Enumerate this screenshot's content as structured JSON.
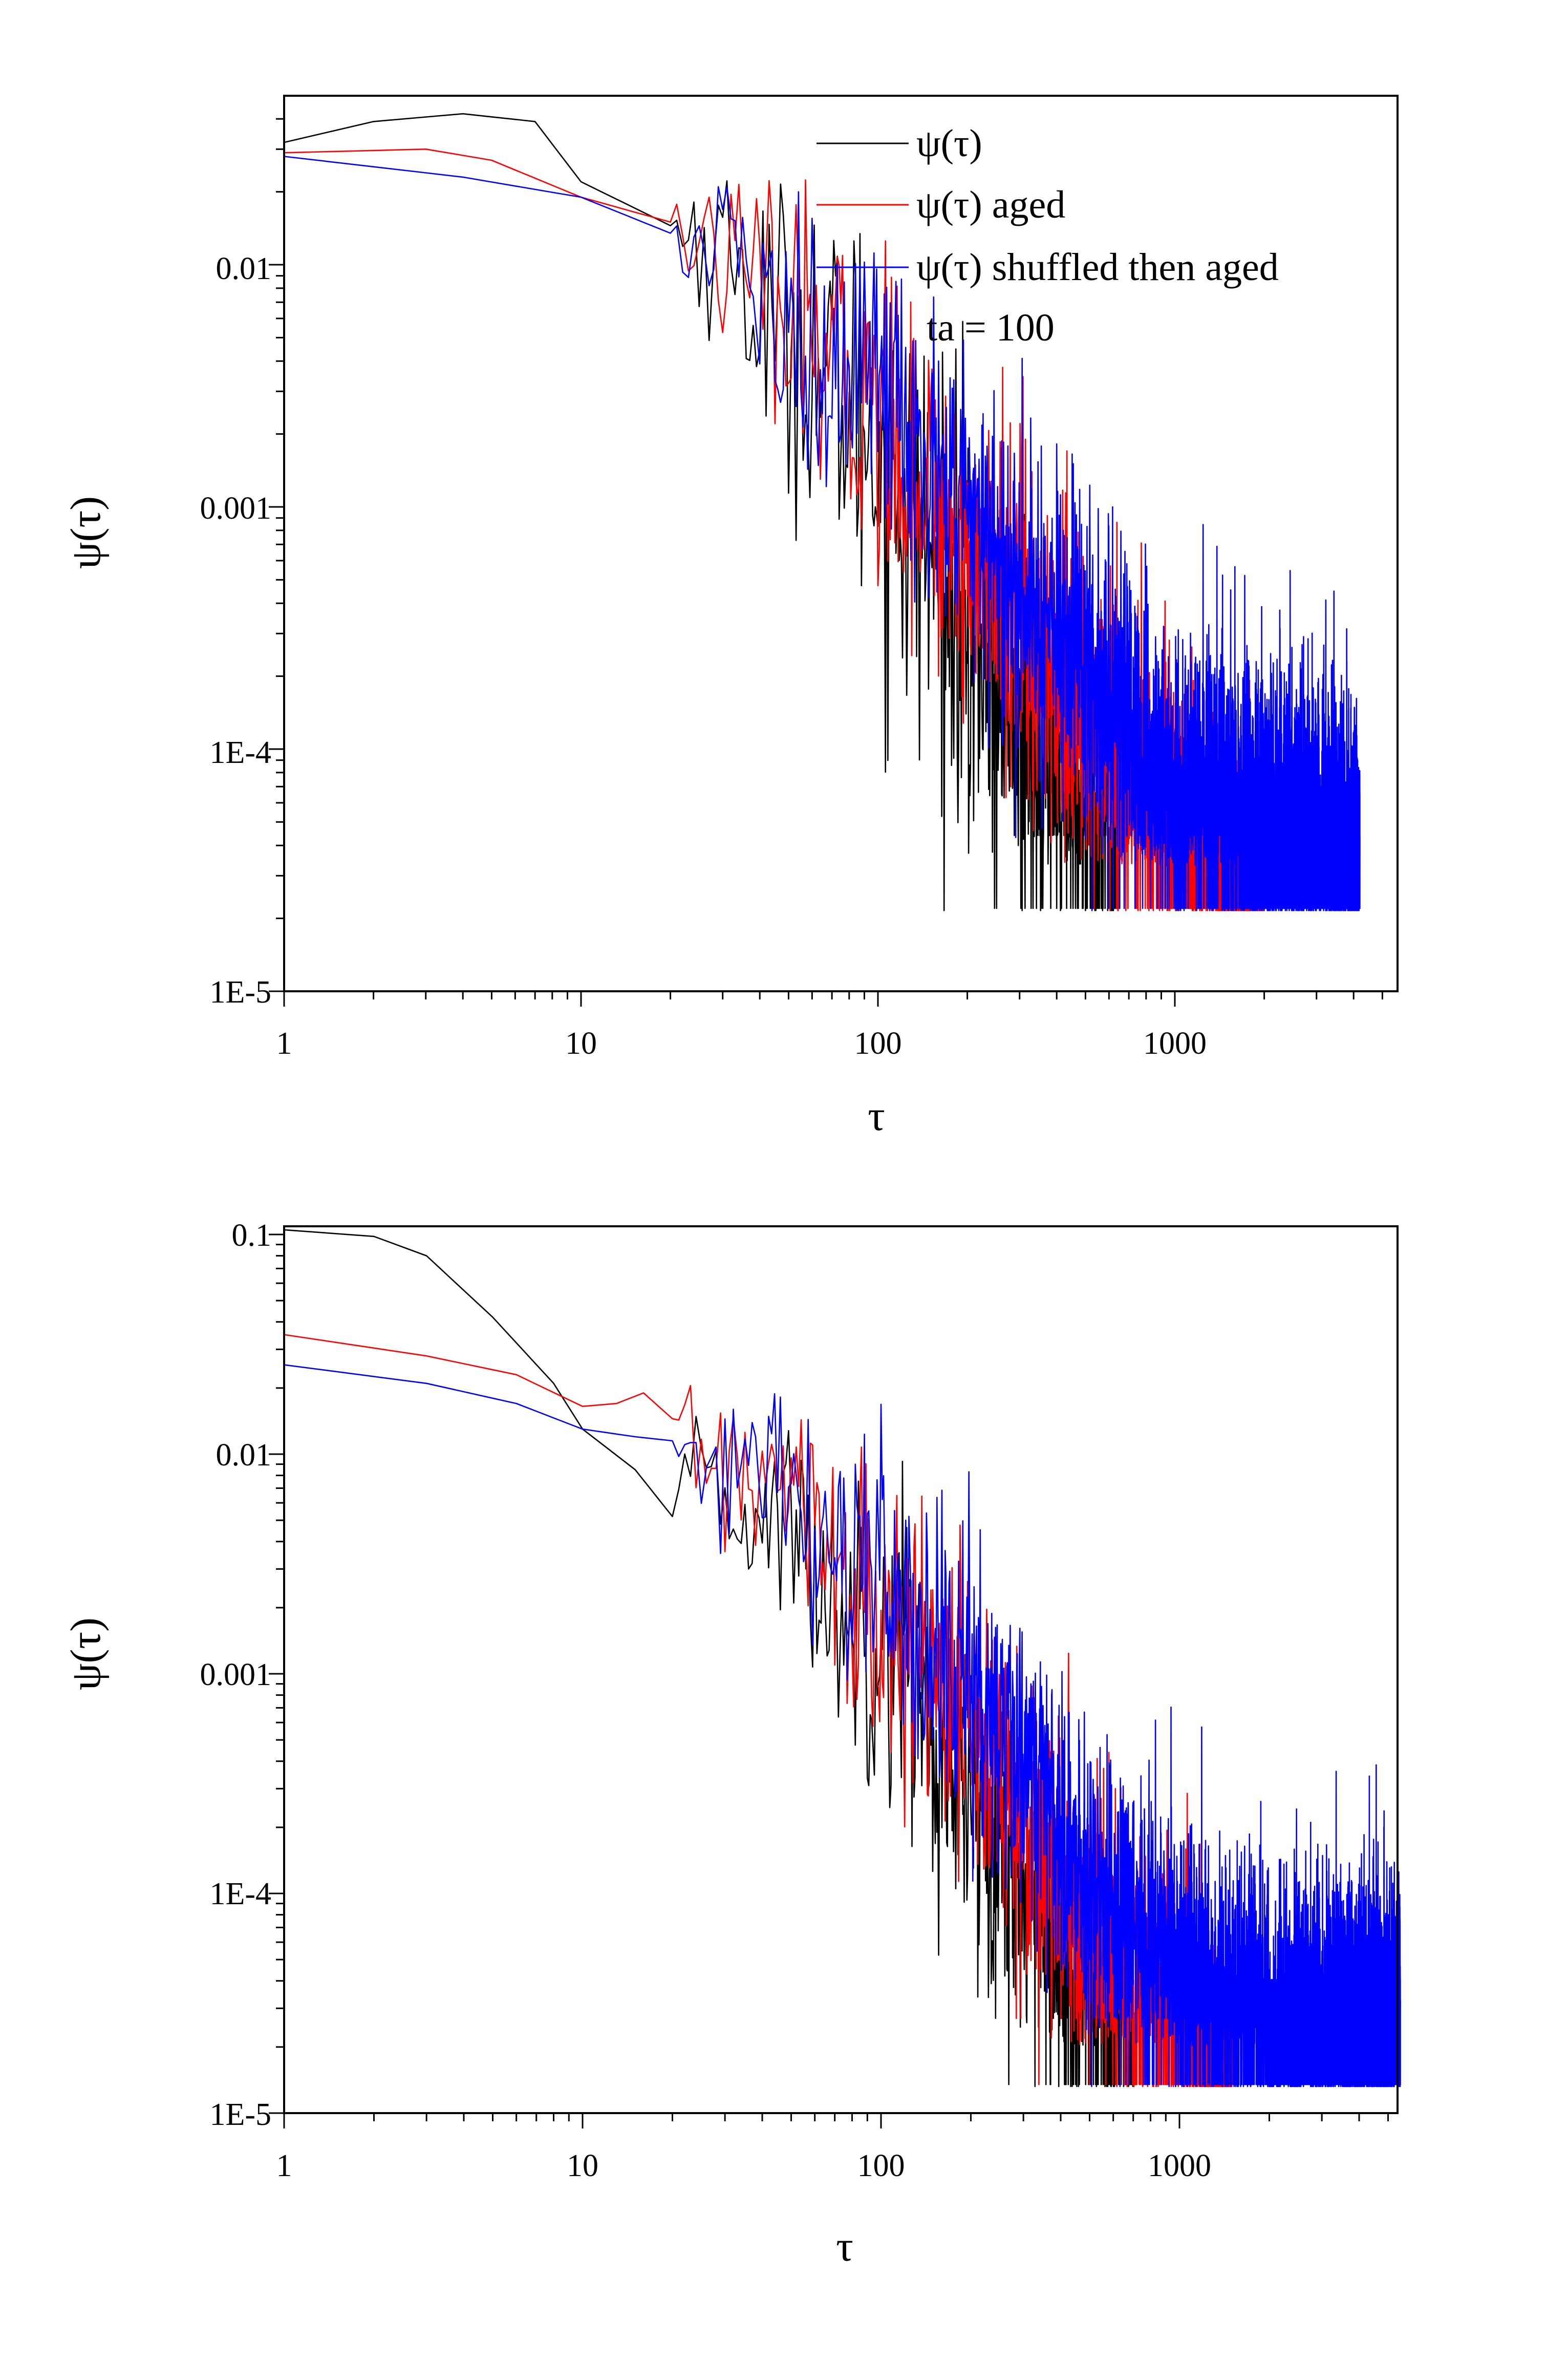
{
  "chart_data": [
    {
      "type": "line",
      "scale": "log-log",
      "xlabel": "τ",
      "ylabel": "ψ(τ)",
      "xlim": [
        1,
        5000
      ],
      "ylim": [
        1e-05,
        0.05
      ],
      "x_ticks": [
        1,
        10,
        100,
        1000
      ],
      "x_tick_labels": [
        "1",
        "10",
        "100",
        "1000"
      ],
      "y_ticks": [
        1e-05,
        0.0001,
        0.001,
        0.01
      ],
      "y_tick_labels": [
        "1E-5",
        "1E-4",
        "0.001",
        "0.01"
      ],
      "legend": {
        "position": "top-right",
        "entries": [
          "ψ(τ)",
          "ψ(τ) aged",
          "ψ(τ) shuffled then aged"
        ]
      },
      "annotation": "ta = 100",
      "noise_floor": 2.2e-05,
      "series": [
        {
          "name": "ψ(τ)",
          "color": "#000000",
          "anchors": [
            [
              1,
              0.032
            ],
            [
              2,
              0.039
            ],
            [
              4,
              0.042
            ],
            [
              7,
              0.039
            ],
            [
              10,
              0.022
            ],
            [
              20,
              0.0145
            ],
            [
              30,
              0.012
            ],
            [
              40,
              0.0065
            ],
            [
              60,
              0.0042
            ],
            [
              100,
              0.0018
            ],
            [
              150,
              0.00065
            ],
            [
              200,
              0.00028
            ],
            [
              300,
              0.0001
            ],
            [
              400,
              5e-05
            ]
          ],
          "noise": 0.45,
          "x_end": 650
        },
        {
          "name": "ψ(τ) aged",
          "color": "#ff0000",
          "anchors": [
            [
              1,
              0.029
            ],
            [
              3,
              0.03
            ],
            [
              5,
              0.027
            ],
            [
              10,
              0.019
            ],
            [
              20,
              0.015
            ],
            [
              30,
              0.011
            ],
            [
              50,
              0.0055
            ],
            [
              100,
              0.0025
            ],
            [
              150,
              0.0012
            ],
            [
              200,
              0.00065
            ],
            [
              300,
              0.00035
            ],
            [
              500,
              0.00012
            ],
            [
              800,
              5e-05
            ]
          ],
          "noise": 0.35,
          "x_end": 2000
        },
        {
          "name": "ψ(τ) shuffled then aged",
          "color": "#0000ff",
          "anchors": [
            [
              1,
              0.028
            ],
            [
              4,
              0.023
            ],
            [
              10,
              0.019
            ],
            [
              20,
              0.0135
            ],
            [
              30,
              0.0105
            ],
            [
              50,
              0.0058
            ],
            [
              100,
              0.0029
            ],
            [
              200,
              0.0009
            ],
            [
              300,
              0.0005
            ],
            [
              500,
              0.00022
            ],
            [
              1000,
              6e-05
            ],
            [
              2000,
              4e-05
            ]
          ],
          "noise": 0.35,
          "x_end": 4200
        }
      ]
    },
    {
      "type": "line",
      "scale": "log-log",
      "xlabel": "τ",
      "ylabel": "ψ(τ)",
      "xlim": [
        1,
        6000
      ],
      "ylim": [
        1e-05,
        0.12
      ],
      "x_ticks": [
        1,
        10,
        100,
        1000
      ],
      "x_tick_labels": [
        "1",
        "10",
        "100",
        "1000"
      ],
      "y_ticks": [
        1e-05,
        0.0001,
        0.001,
        0.01,
        0.1
      ],
      "y_tick_labels": [
        "1E-5",
        "1E-4",
        "0.001",
        "0.01",
        "0.1"
      ],
      "noise_floor": 1.35e-05,
      "series": [
        {
          "name": "ψ(τ)",
          "color": "#000000",
          "anchors": [
            [
              1,
              0.105
            ],
            [
              2,
              0.098
            ],
            [
              3,
              0.08
            ],
            [
              5,
              0.042
            ],
            [
              8,
              0.021
            ],
            [
              10,
              0.013
            ],
            [
              15,
              0.0085
            ],
            [
              20,
              0.0052
            ],
            [
              25,
              0.0078
            ],
            [
              28,
              0.0092
            ],
            [
              30,
              0.0055
            ],
            [
              40,
              0.0052
            ],
            [
              55,
              0.0048
            ],
            [
              60,
              0.0026
            ],
            [
              70,
              0.0018
            ],
            [
              80,
              0.0022
            ],
            [
              100,
              0.0013
            ],
            [
              120,
              0.0016
            ],
            [
              160,
              0.00032
            ],
            [
              200,
              0.00025
            ],
            [
              250,
              0.00018
            ],
            [
              300,
              0.00012
            ],
            [
              400,
              4e-05
            ],
            [
              500,
              2.5e-05
            ]
          ],
          "noise": 0.35,
          "x_end": 700
        },
        {
          "name": "ψ(τ) aged",
          "color": "#ff0000",
          "anchors": [
            [
              1,
              0.035
            ],
            [
              3,
              0.028
            ],
            [
              6,
              0.023
            ],
            [
              10,
              0.0165
            ],
            [
              13,
              0.017
            ],
            [
              16,
              0.019
            ],
            [
              20,
              0.0145
            ],
            [
              25,
              0.0095
            ],
            [
              30,
              0.0085
            ],
            [
              40,
              0.0075
            ],
            [
              55,
              0.0055
            ],
            [
              60,
              0.0068
            ],
            [
              65,
              0.0022
            ],
            [
              70,
              0.0035
            ],
            [
              80,
              0.0025
            ],
            [
              100,
              0.0013
            ],
            [
              130,
              0.0011
            ],
            [
              150,
              0.0015
            ],
            [
              200,
              0.0005
            ],
            [
              300,
              0.00022
            ],
            [
              500,
              6e-05
            ],
            [
              700,
              3e-05
            ]
          ],
          "noise": 0.35,
          "x_end": 1500
        },
        {
          "name": "ψ(τ) shuffled then aged",
          "color": "#0000ff",
          "anchors": [
            [
              1,
              0.0255
            ],
            [
              3,
              0.021
            ],
            [
              6,
              0.017
            ],
            [
              10,
              0.013
            ],
            [
              15,
              0.012
            ],
            [
              20,
              0.0115
            ],
            [
              30,
              0.0085
            ],
            [
              50,
              0.0058
            ],
            [
              70,
              0.0042
            ],
            [
              100,
              0.0026
            ],
            [
              150,
              0.0012
            ],
            [
              200,
              0.0008
            ],
            [
              300,
              0.00045
            ],
            [
              500,
              0.00012
            ],
            [
              1000,
              4e-05
            ],
            [
              2000,
              2e-05
            ],
            [
              4000,
              2e-05
            ]
          ],
          "noise": 0.35,
          "x_end": 5500
        }
      ]
    }
  ]
}
